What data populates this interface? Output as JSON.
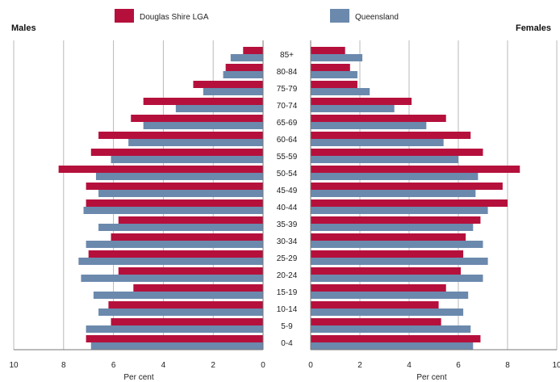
{
  "chart_data": {
    "type": "bar",
    "layout": "population-pyramid",
    "left_side_label": "Males",
    "right_side_label": "Females",
    "xlabel": "Per cent",
    "xlim": [
      0,
      10
    ],
    "x_ticks": [
      10,
      8,
      6,
      4,
      2,
      0
    ],
    "grid": true,
    "legend_position": "top-center",
    "age_groups": [
      "0-4",
      "5-9",
      "10-14",
      "15-19",
      "20-24",
      "25-29",
      "30-34",
      "35-39",
      "40-44",
      "45-49",
      "50-54",
      "55-59",
      "60-64",
      "65-69",
      "70-74",
      "75-79",
      "80-84",
      "85+"
    ],
    "series": [
      {
        "name": "Douglas Shire LGA",
        "color": "#b5103c",
        "males": [
          7.1,
          6.1,
          6.2,
          5.2,
          5.8,
          7.0,
          6.1,
          5.8,
          7.1,
          7.1,
          8.2,
          6.9,
          6.6,
          5.3,
          4.8,
          2.8,
          1.5,
          0.8
        ],
        "females": [
          6.9,
          5.3,
          5.2,
          5.5,
          6.1,
          6.2,
          6.3,
          6.9,
          8.0,
          7.8,
          8.5,
          7.0,
          6.5,
          5.5,
          4.1,
          1.9,
          1.6,
          1.4
        ]
      },
      {
        "name": "Queensland",
        "color": "#6b89ad",
        "males": [
          6.9,
          7.1,
          6.6,
          6.8,
          7.3,
          7.4,
          7.1,
          6.6,
          7.2,
          6.6,
          6.7,
          6.1,
          5.4,
          4.8,
          3.5,
          2.4,
          1.6,
          1.3
        ],
        "females": [
          6.6,
          6.5,
          6.2,
          6.4,
          7.0,
          7.2,
          7.0,
          6.6,
          7.2,
          6.7,
          6.8,
          6.0,
          5.4,
          4.7,
          3.4,
          2.4,
          1.9,
          2.1
        ]
      }
    ]
  }
}
